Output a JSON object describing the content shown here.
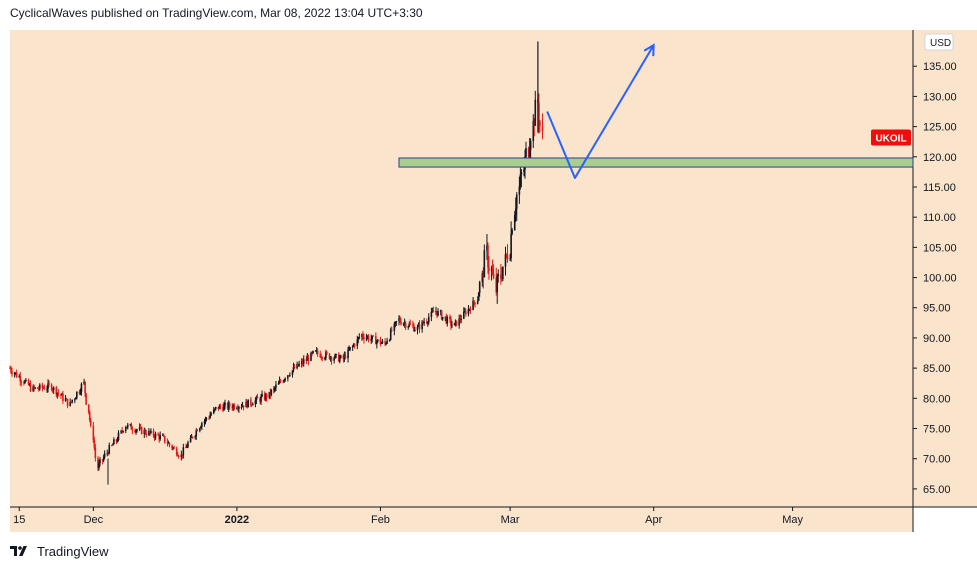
{
  "header": {
    "text": "CyclicalWaves published on TradingView.com, Mar 08, 2022 13:04 UTC+3:30"
  },
  "footer": {
    "brand": "TradingView",
    "logo_icon": "tradingview-logo-icon"
  },
  "colors": {
    "background": "#fae4cb",
    "bull_candle": "#131722",
    "bear_candle": "#e01a1a",
    "zone_fill": "#a9cf8e",
    "zone_border": "#2a3f8f",
    "projection": "#2962ff",
    "symbol_tag": "#f20c0c"
  },
  "chart_data": {
    "type": "candlestick",
    "currency": "USD",
    "symbol_label": "UKOIL",
    "current_price_tag": 123.2,
    "ylim": [
      62,
      141
    ],
    "y_ticks": [
      65,
      70,
      75,
      80,
      85,
      90,
      95,
      100,
      105,
      110,
      115,
      120,
      125,
      130,
      135
    ],
    "y_tick_labels": [
      "65.00",
      "70.00",
      "75.00",
      "80.00",
      "85.00",
      "90.00",
      "95.00",
      "100.00",
      "105.00",
      "110.00",
      "115.00",
      "120.00",
      "125.00",
      "130.00",
      "135.00"
    ],
    "x_range": [
      "2021-11-13",
      "2022-05-27"
    ],
    "x_ticks": [
      {
        "label": "15",
        "date": "2021-11-15"
      },
      {
        "label": "Dec",
        "date": "2021-12-01"
      },
      {
        "label": "2022",
        "date": "2022-01-01"
      },
      {
        "label": "Feb",
        "date": "2022-02-01"
      },
      {
        "label": "Mar",
        "date": "2022-03-01"
      },
      {
        "label": "Apr",
        "date": "2022-04-01"
      },
      {
        "label": "May",
        "date": "2022-05-01"
      }
    ],
    "price_path": [
      [
        "2021-11-13",
        85.0
      ],
      [
        "2021-11-18",
        81.5
      ],
      [
        "2021-11-22",
        82.0
      ],
      [
        "2021-11-26",
        79.0
      ],
      [
        "2021-11-29",
        82.5
      ],
      [
        "2021-12-01",
        73.5
      ],
      [
        "2021-12-02",
        68.5
      ],
      [
        "2021-12-04",
        71.0
      ],
      [
        "2021-12-06",
        73.0
      ],
      [
        "2021-12-08",
        75.5
      ],
      [
        "2021-12-12",
        74.5
      ],
      [
        "2021-12-16",
        73.5
      ],
      [
        "2021-12-20",
        70.5
      ],
      [
        "2021-12-24",
        75.5
      ],
      [
        "2021-12-28",
        78.5
      ],
      [
        "2022-01-03",
        79.0
      ],
      [
        "2022-01-08",
        80.5
      ],
      [
        "2022-01-12",
        84.0
      ],
      [
        "2022-01-18",
        87.5
      ],
      [
        "2022-01-24",
        86.5
      ],
      [
        "2022-01-28",
        90.5
      ],
      [
        "2022-02-02",
        89.0
      ],
      [
        "2022-02-05",
        93.0
      ],
      [
        "2022-02-09",
        91.5
      ],
      [
        "2022-02-13",
        94.5
      ],
      [
        "2022-02-17",
        92.0
      ],
      [
        "2022-02-22",
        96.5
      ],
      [
        "2022-02-24",
        104.0
      ],
      [
        "2022-02-26",
        98.0
      ],
      [
        "2022-03-01",
        105.0
      ],
      [
        "2022-03-02",
        111.5
      ],
      [
        "2022-03-04",
        118.0
      ],
      [
        "2022-03-07",
        129.0
      ],
      [
        "2022-03-08",
        123.2
      ]
    ],
    "spike_high": {
      "date": "2022-03-07",
      "value": 139.1
    },
    "min_low": {
      "date": "2021-12-02",
      "value": 65.7
    },
    "zone": {
      "from": "2022-02-05",
      "to": "2022-05-27",
      "low": 118.3,
      "high": 119.8
    },
    "projection": [
      [
        "2022-03-09",
        127.5
      ],
      [
        "2022-03-15",
        116.5
      ],
      [
        "2022-04-01",
        138.5
      ]
    ]
  }
}
